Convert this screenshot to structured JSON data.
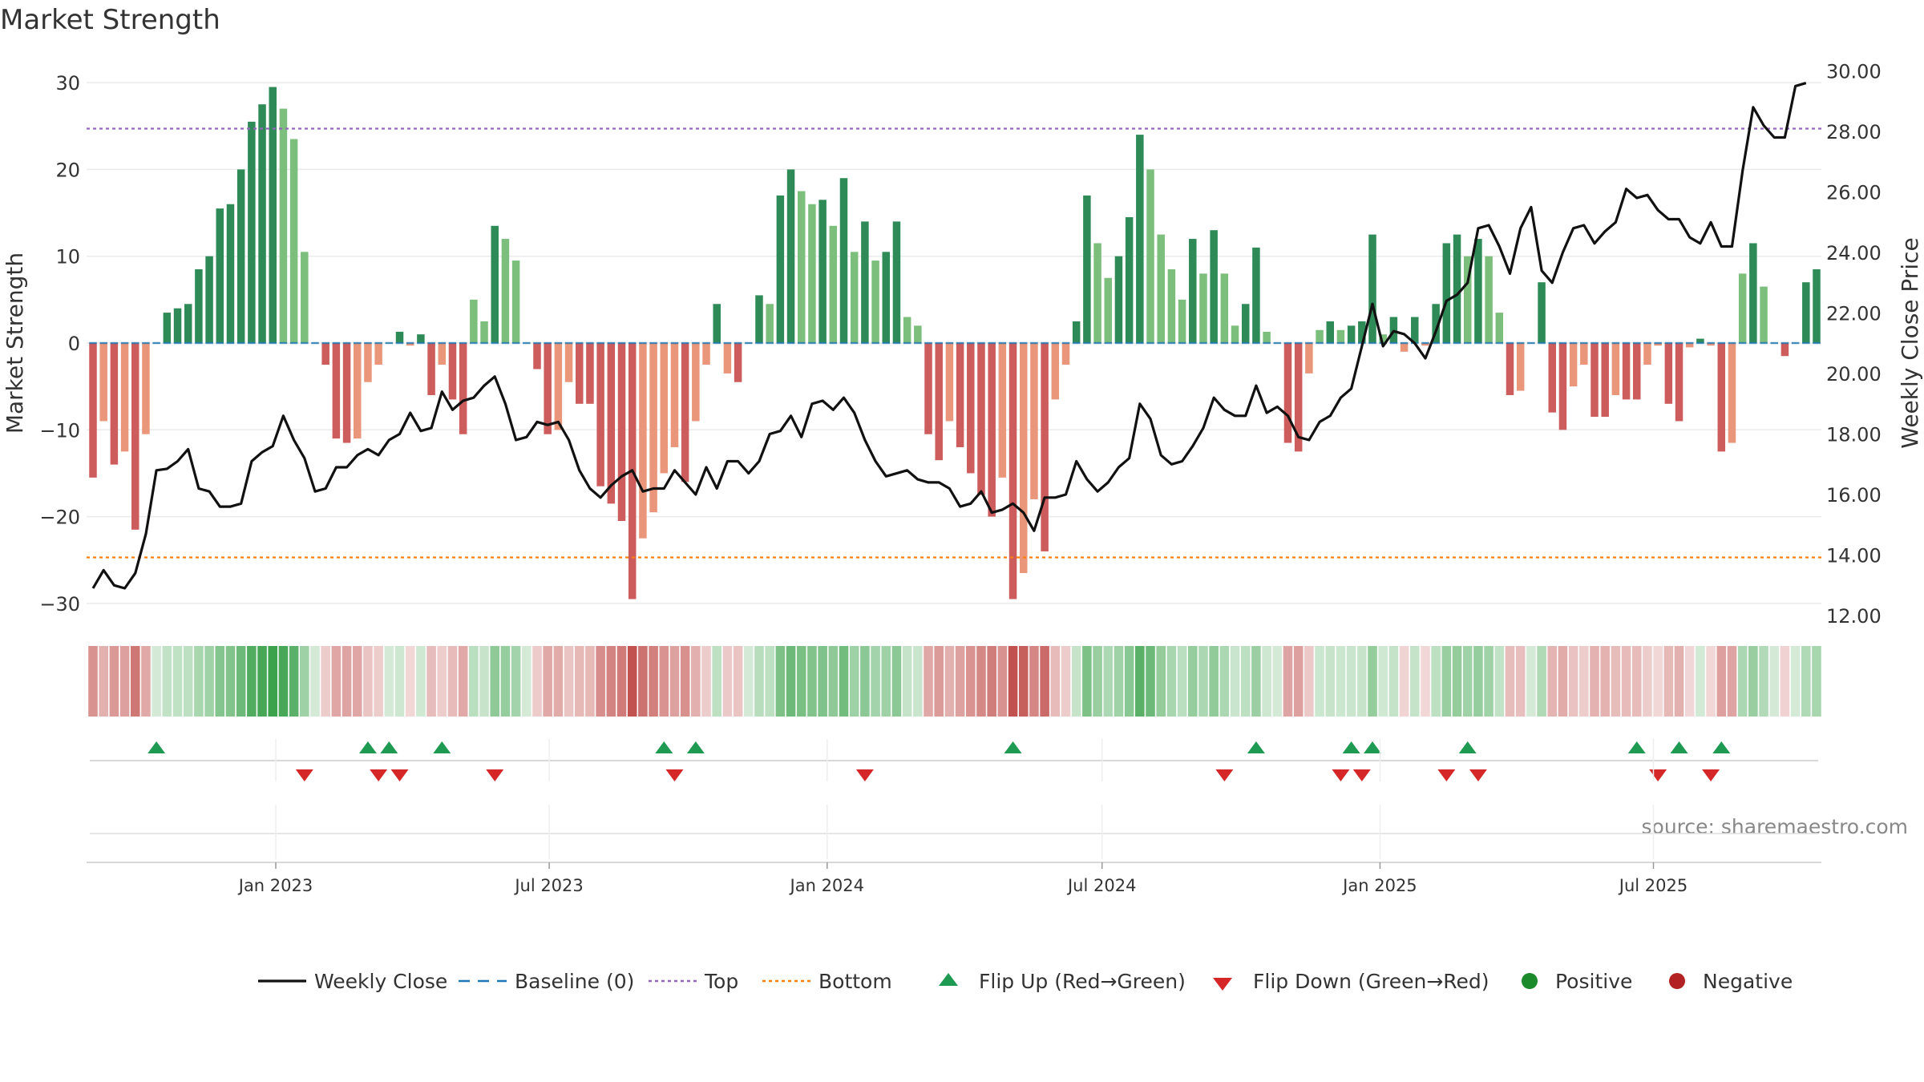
{
  "title": "Market Strength",
  "source": "source: sharemaestro.com",
  "colors": {
    "close": "#111111",
    "baseline": "#1f77b4",
    "top": "#9467bd",
    "bottom": "#ff7f0e",
    "pos_strong": "#2e8b57",
    "pos_weak": "#7cbf7c",
    "neg_strong": "#cd5c5c",
    "neg_weak": "#e9967a",
    "flip_up": "#1e9a52",
    "flip_down": "#d62728",
    "positive": "#1a8a2a",
    "negative": "#b22222"
  },
  "legend": [
    {
      "label": "Weekly Close",
      "kind": "line"
    },
    {
      "label": "Baseline (0)",
      "kind": "dash"
    },
    {
      "label": "Top",
      "kind": "dot-top"
    },
    {
      "label": "Bottom",
      "kind": "dot-bottom"
    },
    {
      "label": "Flip Up (Red→Green)",
      "kind": "tri-up"
    },
    {
      "label": "Flip Down (Green→Red)",
      "kind": "tri-down"
    },
    {
      "label": "Positive",
      "kind": "circle-pos"
    },
    {
      "label": "Negative",
      "kind": "circle-neg"
    }
  ],
  "chart_data": {
    "type": "bar",
    "ylabel": "Market Strength",
    "y2label": "Weekly Close Price",
    "ylim": [
      -35,
      30
    ],
    "yticks": [
      "30",
      "20",
      "10",
      "0",
      "−10",
      "−20",
      "−30"
    ],
    "y2lim": [
      11.5,
      30.2
    ],
    "y2ticks": [
      "30.00",
      "28.00",
      "26.00",
      "24.00",
      "22.00",
      "20.00",
      "18.00",
      "16.00",
      "14.00",
      "12.00"
    ],
    "top_level": 24.7,
    "bottom_level": -24.7,
    "start_date": "2022-09-02",
    "xticks": [
      "Jan 2023",
      "Jul 2023",
      "Jan 2024",
      "Jul 2024",
      "Jan 2025",
      "Jul 2025"
    ],
    "strength": [
      -15.5,
      -9,
      -14,
      -12.5,
      -21.5,
      -10.5,
      0,
      3.5,
      4,
      4.5,
      8.5,
      10,
      15.5,
      16,
      20,
      25.5,
      27.5,
      29.5,
      27,
      23.5,
      10.5,
      0,
      -2.5,
      -11,
      -11.5,
      -11,
      -4.5,
      -2.5,
      0,
      1.3,
      -0.3,
      1,
      -6,
      -2.5,
      -6.5,
      -10.5,
      5,
      2.5,
      13.5,
      12,
      9.5,
      0,
      -3,
      -10.5,
      -10,
      -4.5,
      -7,
      -7,
      -16.5,
      -18.5,
      -20.5,
      -29.5,
      -22.5,
      -19.5,
      -15,
      -12,
      -16,
      -9,
      -2.5,
      4.5,
      -3.5,
      -4.5,
      0,
      5.5,
      4.5,
      17,
      20,
      17.5,
      16,
      16.5,
      13.5,
      19,
      10.5,
      14,
      9.5,
      10.5,
      14,
      3,
      2,
      -10.5,
      -13.5,
      -9,
      -12,
      -15,
      -17.5,
      -20,
      -15.5,
      -29.5,
      -26.5,
      -18,
      -24,
      -6.5,
      -2.5,
      2.5,
      17,
      11.5,
      7.5,
      10,
      14.5,
      24,
      20,
      12.5,
      8.5,
      5,
      12,
      8,
      13,
      8,
      2,
      4.5,
      11,
      1.3,
      0,
      -11.5,
      -12.5,
      -3.5,
      1.5,
      2.5,
      1.5,
      2,
      2.5,
      12.5,
      1,
      3,
      -1,
      3,
      -0.3,
      4.5,
      11.5,
      12.5,
      10,
      12,
      10,
      3.5,
      -6,
      -5.5,
      0,
      7,
      -8,
      -10,
      -5,
      -2.5,
      -8.5,
      -8.5,
      -6,
      -6.5,
      -6.5,
      -2.5,
      -0.3,
      -7,
      -9,
      -0.5,
      0.5,
      -0.3,
      -12.5,
      -11.5,
      8,
      11.5,
      6.5,
      0,
      -1.5,
      0,
      7,
      8.5
    ],
    "close": [
      12.9,
      13.5,
      13,
      12.9,
      13.4,
      14.7,
      16.8,
      16.85,
      17.1,
      17.5,
      16.2,
      16.1,
      15.6,
      15.6,
      15.7,
      17.1,
      17.4,
      17.6,
      18.6,
      17.8,
      17.2,
      16.1,
      16.2,
      16.9,
      16.9,
      17.3,
      17.5,
      17.3,
      17.8,
      18.0,
      18.7,
      18.1,
      18.2,
      19.4,
      18.8,
      19.1,
      19.2,
      19.6,
      19.9,
      19.0,
      17.8,
      17.9,
      18.4,
      18.3,
      18.4,
      17.8,
      16.8,
      16.2,
      15.9,
      16.3,
      16.6,
      16.8,
      16.1,
      16.2,
      16.2,
      16.8,
      16.4,
      16.0,
      16.9,
      16.2,
      17.1,
      17.1,
      16.7,
      17.1,
      18.0,
      18.1,
      18.6,
      17.9,
      19.0,
      19.1,
      18.8,
      19.2,
      18.7,
      17.8,
      17.1,
      16.6,
      16.7,
      16.8,
      16.5,
      16.4,
      16.4,
      16.2,
      15.6,
      15.7,
      16.1,
      15.4,
      15.5,
      15.7,
      15.4,
      14.8,
      15.9,
      15.9,
      16.0,
      17.1,
      16.5,
      16.1,
      16.4,
      16.9,
      17.2,
      19.0,
      18.5,
      17.3,
      17.0,
      17.1,
      17.6,
      18.2,
      19.2,
      18.8,
      18.6,
      18.6,
      19.6,
      18.7,
      18.9,
      18.6,
      17.9,
      17.8,
      18.4,
      18.6,
      19.2,
      19.5,
      20.9,
      22.3,
      20.9,
      21.4,
      21.3,
      21.0,
      20.5,
      21.4,
      22.4,
      22.6,
      23.0,
      24.8,
      24.9,
      24.2,
      23.3,
      24.8,
      25.5,
      23.4,
      23.0,
      24.0,
      24.8,
      24.9,
      24.3,
      24.7,
      25.0,
      26.1,
      25.8,
      25.9,
      25.4,
      25.1,
      25.1,
      24.5,
      24.3,
      25.0,
      24.2,
      24.2,
      26.7,
      28.8,
      28.2,
      27.8,
      27.8,
      29.5,
      29.6
    ],
    "flip_up_index": [
      6,
      26,
      28,
      33,
      54,
      57,
      87,
      110,
      119,
      121,
      130,
      146,
      150,
      154
    ],
    "flip_down_index": [
      20,
      27,
      29,
      38,
      55,
      73,
      107,
      118,
      120,
      128,
      131,
      148,
      153
    ]
  }
}
